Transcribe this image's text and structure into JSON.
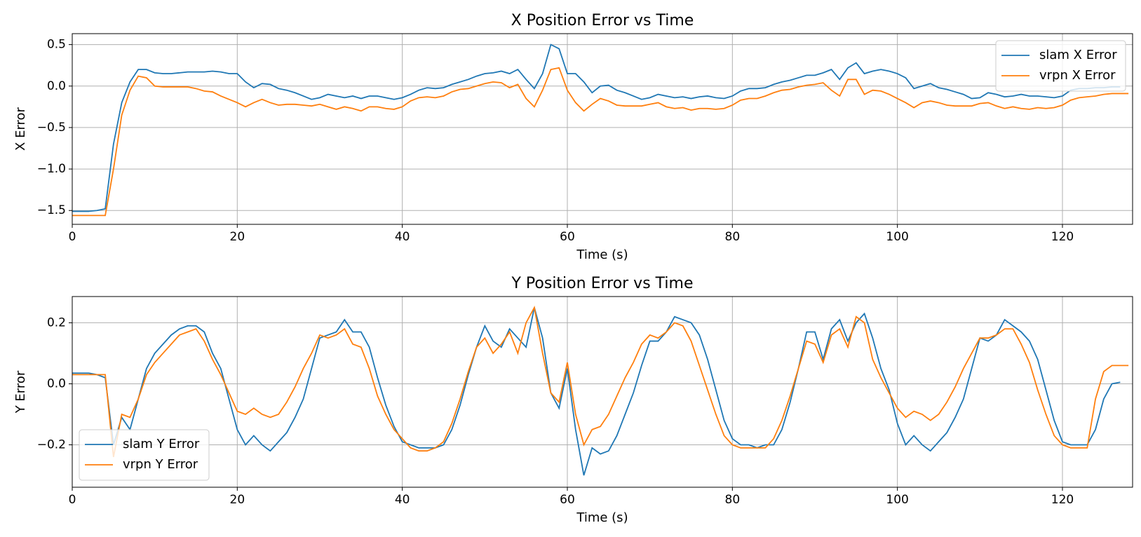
{
  "chart_data": [
    {
      "type": "line",
      "title": "X Position Error vs Time",
      "xlabel": "Time (s)",
      "ylabel": "X Error",
      "x": [
        0,
        1,
        2,
        3,
        4,
        5,
        6,
        7,
        8,
        9,
        10,
        11,
        12,
        13,
        14,
        15,
        16,
        17,
        18,
        19,
        20,
        21,
        22,
        23,
        24,
        25,
        26,
        27,
        28,
        29,
        30,
        31,
        32,
        33,
        34,
        35,
        36,
        37,
        38,
        39,
        40,
        41,
        42,
        43,
        44,
        45,
        46,
        47,
        48,
        49,
        50,
        51,
        52,
        53,
        54,
        55,
        56,
        57,
        58,
        59,
        60,
        61,
        62,
        63,
        64,
        65,
        66,
        67,
        68,
        69,
        70,
        71,
        72,
        73,
        74,
        75,
        76,
        77,
        78,
        79,
        80,
        81,
        82,
        83,
        84,
        85,
        86,
        87,
        88,
        89,
        90,
        91,
        92,
        93,
        94,
        95,
        96,
        97,
        98,
        99,
        100,
        101,
        102,
        103,
        104,
        105,
        106,
        107,
        108,
        109,
        110,
        111,
        112,
        113,
        114,
        115,
        116,
        117,
        118,
        119,
        120,
        121,
        122,
        123,
        124,
        125,
        126,
        127,
        128
      ],
      "series": [
        {
          "name": "slam X Error",
          "color": "#1f77b4",
          "values": [
            -1.51,
            -1.51,
            -1.51,
            -1.5,
            -1.48,
            -0.7,
            -0.2,
            0.05,
            0.2,
            0.2,
            0.16,
            0.15,
            0.15,
            0.16,
            0.17,
            0.17,
            0.17,
            0.18,
            0.17,
            0.15,
            0.15,
            0.05,
            -0.02,
            0.03,
            0.02,
            -0.03,
            -0.05,
            -0.08,
            -0.12,
            -0.16,
            -0.14,
            -0.1,
            -0.12,
            -0.14,
            -0.12,
            -0.15,
            -0.12,
            -0.12,
            -0.14,
            -0.16,
            -0.14,
            -0.1,
            -0.05,
            -0.02,
            -0.03,
            -0.02,
            0.02,
            0.05,
            0.08,
            0.12,
            0.15,
            0.16,
            0.18,
            0.15,
            0.2,
            0.08,
            -0.03,
            0.15,
            0.5,
            0.45,
            0.15,
            0.15,
            0.05,
            -0.08,
            0.0,
            0.01,
            -0.05,
            -0.08,
            -0.12,
            -0.16,
            -0.14,
            -0.1,
            -0.12,
            -0.14,
            -0.13,
            -0.15,
            -0.13,
            -0.12,
            -0.14,
            -0.15,
            -0.12,
            -0.06,
            -0.03,
            -0.03,
            -0.02,
            0.02,
            0.05,
            0.07,
            0.1,
            0.13,
            0.13,
            0.16,
            0.2,
            0.08,
            0.22,
            0.28,
            0.15,
            0.18,
            0.2,
            0.18,
            0.15,
            0.1,
            -0.03,
            0.0,
            0.03,
            -0.02,
            -0.04,
            -0.07,
            -0.1,
            -0.15,
            -0.14,
            -0.08,
            -0.1,
            -0.13,
            -0.12,
            -0.1,
            -0.12,
            -0.12,
            -0.13,
            -0.14,
            -0.12,
            -0.05,
            -0.03,
            -0.03,
            -0.02,
            -0.02,
            -0.01,
            -0.01,
            null
          ]
        },
        {
          "name": "vrpn X Error",
          "color": "#ff7f0e",
          "values": [
            -1.56,
            -1.56,
            -1.56,
            -1.56,
            -1.56,
            -1.0,
            -0.35,
            -0.05,
            0.12,
            0.1,
            0.0,
            -0.01,
            -0.01,
            -0.01,
            -0.01,
            -0.03,
            -0.06,
            -0.07,
            -0.12,
            -0.16,
            -0.2,
            -0.25,
            -0.2,
            -0.16,
            -0.2,
            -0.23,
            -0.22,
            -0.22,
            -0.23,
            -0.24,
            -0.22,
            -0.25,
            -0.28,
            -0.25,
            -0.27,
            -0.3,
            -0.25,
            -0.25,
            -0.27,
            -0.28,
            -0.25,
            -0.18,
            -0.14,
            -0.13,
            -0.14,
            -0.12,
            -0.07,
            -0.04,
            -0.03,
            0.0,
            0.03,
            0.05,
            0.04,
            -0.02,
            0.02,
            -0.15,
            -0.25,
            -0.05,
            0.2,
            0.22,
            -0.05,
            -0.2,
            -0.3,
            -0.22,
            -0.15,
            -0.18,
            -0.23,
            -0.24,
            -0.24,
            -0.24,
            -0.22,
            -0.2,
            -0.25,
            -0.27,
            -0.26,
            -0.29,
            -0.27,
            -0.27,
            -0.28,
            -0.27,
            -0.23,
            -0.17,
            -0.15,
            -0.15,
            -0.12,
            -0.08,
            -0.05,
            -0.04,
            -0.01,
            0.01,
            0.02,
            0.04,
            -0.05,
            -0.12,
            0.08,
            0.08,
            -0.1,
            -0.05,
            -0.06,
            -0.1,
            -0.15,
            -0.2,
            -0.26,
            -0.2,
            -0.18,
            -0.2,
            -0.23,
            -0.24,
            -0.24,
            -0.24,
            -0.21,
            -0.2,
            -0.24,
            -0.27,
            -0.25,
            -0.27,
            -0.28,
            -0.26,
            -0.27,
            -0.26,
            -0.23,
            -0.17,
            -0.14,
            -0.13,
            -0.12,
            -0.1,
            -0.09,
            -0.09,
            -0.09
          ]
        }
      ],
      "xlim": [
        0,
        128.5
      ],
      "ylim": [
        -1.667,
        0.632
      ],
      "xticks": [
        0,
        20,
        40,
        60,
        80,
        100,
        120
      ],
      "yticks": [
        {
          "value": -1.5,
          "label": "−1.5"
        },
        {
          "value": -1.0,
          "label": "−1.0"
        },
        {
          "value": -0.5,
          "label": "−0.5"
        },
        {
          "value": 0.0,
          "label": "0.0"
        },
        {
          "value": 0.5,
          "label": "0.5"
        }
      ],
      "grid": true,
      "legend": "upper right"
    },
    {
      "type": "line",
      "title": "Y Position Error vs Time",
      "xlabel": "Time (s)",
      "ylabel": "Y Error",
      "x": [
        0,
        1,
        2,
        3,
        4,
        5,
        6,
        7,
        8,
        9,
        10,
        11,
        12,
        13,
        14,
        15,
        16,
        17,
        18,
        19,
        20,
        21,
        22,
        23,
        24,
        25,
        26,
        27,
        28,
        29,
        30,
        31,
        32,
        33,
        34,
        35,
        36,
        37,
        38,
        39,
        40,
        41,
        42,
        43,
        44,
        45,
        46,
        47,
        48,
        49,
        50,
        51,
        52,
        53,
        54,
        55,
        56,
        57,
        58,
        59,
        60,
        61,
        62,
        63,
        64,
        65,
        66,
        67,
        68,
        69,
        70,
        71,
        72,
        73,
        74,
        75,
        76,
        77,
        78,
        79,
        80,
        81,
        82,
        83,
        84,
        85,
        86,
        87,
        88,
        89,
        90,
        91,
        92,
        93,
        94,
        95,
        96,
        97,
        98,
        99,
        100,
        101,
        102,
        103,
        104,
        105,
        106,
        107,
        108,
        109,
        110,
        111,
        112,
        113,
        114,
        115,
        116,
        117,
        118,
        119,
        120,
        121,
        122,
        123,
        124,
        125,
        126,
        127,
        128
      ],
      "series": [
        {
          "name": "slam Y Error",
          "color": "#1f77b4",
          "values": [
            0.035,
            0.035,
            0.035,
            0.03,
            0.02,
            -0.2,
            -0.11,
            -0.15,
            -0.05,
            0.05,
            0.1,
            0.13,
            0.16,
            0.18,
            0.19,
            0.19,
            0.17,
            0.1,
            0.05,
            -0.05,
            -0.15,
            -0.2,
            -0.17,
            -0.2,
            -0.22,
            -0.19,
            -0.16,
            -0.11,
            -0.05,
            0.05,
            0.15,
            0.16,
            0.17,
            0.21,
            0.17,
            0.17,
            0.12,
            0.02,
            -0.07,
            -0.14,
            -0.19,
            -0.2,
            -0.21,
            -0.21,
            -0.21,
            -0.2,
            -0.15,
            -0.07,
            0.03,
            0.12,
            0.19,
            0.14,
            0.12,
            0.18,
            0.15,
            0.12,
            0.25,
            0.15,
            -0.03,
            -0.08,
            0.05,
            -0.15,
            -0.3,
            -0.21,
            -0.23,
            -0.22,
            -0.17,
            -0.1,
            -0.03,
            0.06,
            0.14,
            0.14,
            0.17,
            0.22,
            0.21,
            0.2,
            0.16,
            0.08,
            -0.02,
            -0.12,
            -0.18,
            -0.2,
            -0.2,
            -0.21,
            -0.2,
            -0.2,
            -0.15,
            -0.06,
            0.05,
            0.17,
            0.17,
            0.08,
            0.18,
            0.21,
            0.14,
            0.2,
            0.23,
            0.15,
            0.05,
            -0.02,
            -0.13,
            -0.2,
            -0.17,
            -0.2,
            -0.22,
            -0.19,
            -0.16,
            -0.11,
            -0.05,
            0.05,
            0.15,
            0.14,
            0.16,
            0.21,
            0.19,
            0.17,
            0.14,
            0.08,
            -0.02,
            -0.12,
            -0.19,
            -0.2,
            -0.2,
            -0.2,
            -0.15,
            -0.05,
            0.0,
            0.005,
            null
          ]
        },
        {
          "name": "vrpn Y Error",
          "color": "#ff7f0e",
          "values": [
            0.03,
            0.03,
            0.03,
            0.03,
            0.03,
            -0.24,
            -0.1,
            -0.11,
            -0.05,
            0.03,
            0.07,
            0.1,
            0.13,
            0.16,
            0.17,
            0.18,
            0.14,
            0.08,
            0.03,
            -0.03,
            -0.09,
            -0.1,
            -0.08,
            -0.1,
            -0.11,
            -0.1,
            -0.06,
            -0.01,
            0.05,
            0.1,
            0.16,
            0.15,
            0.16,
            0.18,
            0.13,
            0.12,
            0.05,
            -0.04,
            -0.1,
            -0.15,
            -0.18,
            -0.21,
            -0.22,
            -0.22,
            -0.21,
            -0.19,
            -0.13,
            -0.05,
            0.04,
            0.12,
            0.15,
            0.1,
            0.13,
            0.17,
            0.1,
            0.2,
            0.25,
            0.1,
            -0.03,
            -0.06,
            0.07,
            -0.1,
            -0.2,
            -0.15,
            -0.14,
            -0.1,
            -0.04,
            0.02,
            0.07,
            0.13,
            0.16,
            0.15,
            0.17,
            0.2,
            0.19,
            0.14,
            0.06,
            -0.02,
            -0.1,
            -0.17,
            -0.2,
            -0.21,
            -0.21,
            -0.21,
            -0.21,
            -0.18,
            -0.12,
            -0.04,
            0.05,
            0.14,
            0.13,
            0.07,
            0.16,
            0.18,
            0.12,
            0.22,
            0.2,
            0.08,
            0.02,
            -0.03,
            -0.08,
            -0.11,
            -0.09,
            -0.1,
            -0.12,
            -0.1,
            -0.06,
            -0.01,
            0.05,
            0.1,
            0.15,
            0.15,
            0.16,
            0.18,
            0.18,
            0.13,
            0.07,
            -0.02,
            -0.1,
            -0.17,
            -0.2,
            -0.21,
            -0.21,
            -0.21,
            -0.05,
            0.04,
            0.06,
            0.06,
            0.06
          ]
        }
      ],
      "xlim": [
        0,
        128.5
      ],
      "ylim": [
        -0.339,
        0.286
      ],
      "xticks": [
        0,
        20,
        40,
        60,
        80,
        100,
        120
      ],
      "yticks": [
        {
          "value": -0.2,
          "label": "−0.2"
        },
        {
          "value": 0.0,
          "label": "0.0"
        },
        {
          "value": 0.2,
          "label": "0.2"
        }
      ],
      "grid": true,
      "legend": "lower left"
    }
  ]
}
